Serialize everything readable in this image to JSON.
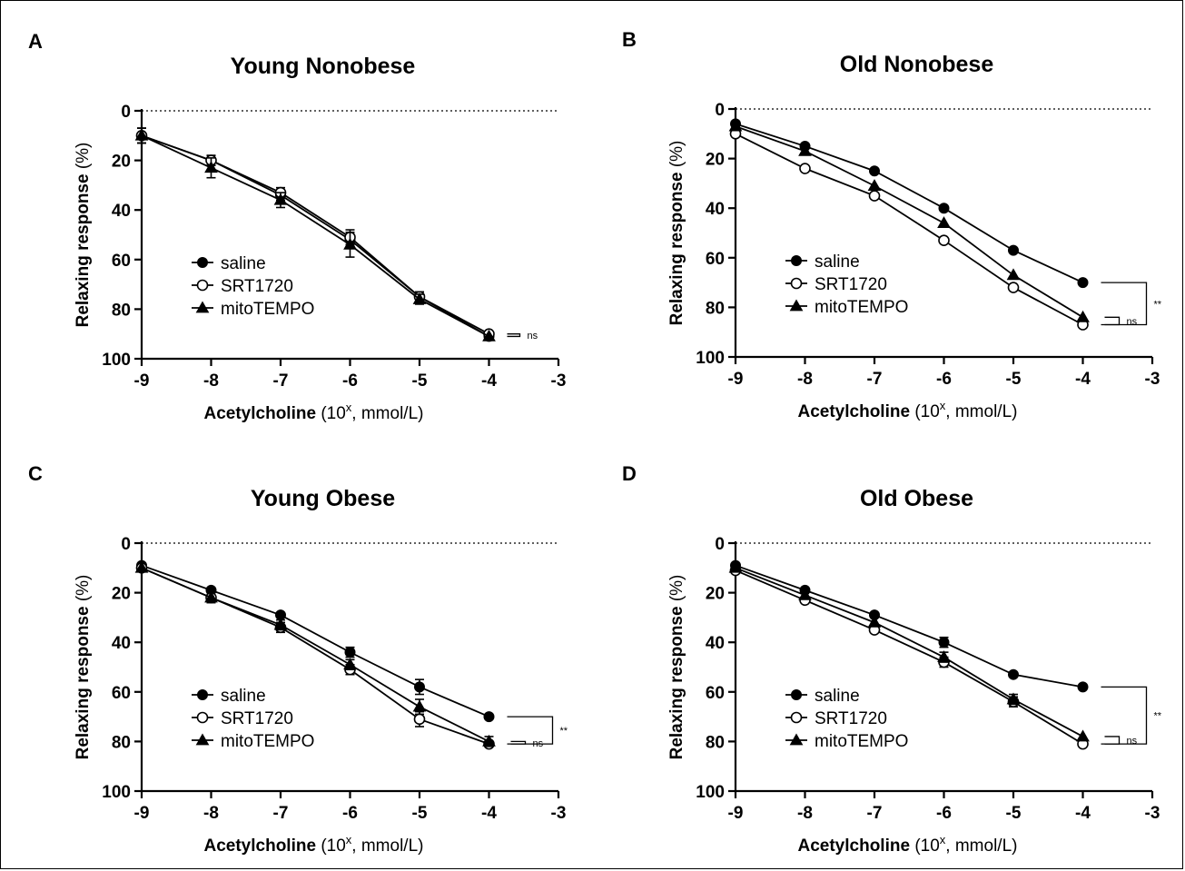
{
  "chart_data": [
    {
      "panel": "A",
      "type": "line",
      "title": "Young Nonobese",
      "xlabel_bold": "Acetylcholine",
      "xlabel_rest": " (10",
      "xlabel_sup": "x",
      "xlabel_end": ", mmol/L)",
      "ylabel_bold": "Relaxing response",
      "ylabel_rest": " (%)",
      "xlim": [
        -9,
        -3
      ],
      "ylim": [
        0,
        100
      ],
      "y_inverted": true,
      "xticks": [
        "-9",
        "-8",
        "-7",
        "-6",
        "-5",
        "-4",
        "-3"
      ],
      "yticks": [
        "0",
        "20",
        "40",
        "60",
        "80",
        "100"
      ],
      "x": [
        -9,
        -8,
        -7,
        -6,
        -5,
        -4
      ],
      "series": [
        {
          "name": "saline",
          "marker": "filled-circle",
          "values": [
            10,
            20,
            34,
            52,
            75,
            91
          ],
          "errors": [
            3,
            2,
            2,
            3,
            2,
            1
          ]
        },
        {
          "name": "SRT1720",
          "marker": "open-circle",
          "values": [
            10,
            20,
            33,
            51,
            75,
            90
          ],
          "errors": [
            3,
            2,
            2,
            3,
            2,
            1
          ]
        },
        {
          "name": "mitoTEMPO",
          "marker": "filled-triangle",
          "values": [
            10,
            23,
            36,
            54,
            76,
            91
          ],
          "errors": [
            3,
            4,
            3,
            5,
            2,
            1
          ]
        }
      ],
      "significance": [
        {
          "label": "ns",
          "between": [
            "saline",
            "SRT1720"
          ]
        }
      ]
    },
    {
      "panel": "B",
      "type": "line",
      "title": "Old Nonobese",
      "xlabel_bold": "Acetylcholine",
      "xlabel_rest": " (10",
      "xlabel_sup": "x",
      "xlabel_end": ", mmol/L)",
      "ylabel_bold": "Relaxing response",
      "ylabel_rest": " (%)",
      "xlim": [
        -9,
        -3
      ],
      "ylim": [
        0,
        100
      ],
      "y_inverted": true,
      "xticks": [
        "-9",
        "-8",
        "-7",
        "-6",
        "-5",
        "-4",
        "-3"
      ],
      "yticks": [
        "0",
        "20",
        "40",
        "60",
        "80",
        "100"
      ],
      "x": [
        -9,
        -8,
        -7,
        -6,
        -5,
        -4
      ],
      "series": [
        {
          "name": "saline",
          "marker": "filled-circle",
          "values": [
            6,
            15,
            25,
            40,
            57,
            70
          ],
          "errors": [
            1,
            1,
            1,
            1,
            1,
            1
          ]
        },
        {
          "name": "SRT1720",
          "marker": "open-circle",
          "values": [
            10,
            24,
            35,
            53,
            72,
            87
          ],
          "errors": [
            1,
            1,
            1,
            1,
            1,
            1
          ]
        },
        {
          "name": "mitoTEMPO",
          "marker": "filled-triangle",
          "values": [
            7,
            17,
            31,
            46,
            67,
            84
          ],
          "errors": [
            1,
            1,
            1,
            1,
            1,
            1
          ]
        }
      ],
      "significance": [
        {
          "label": "ns",
          "between": [
            "mitoTEMPO",
            "SRT1720"
          ]
        },
        {
          "label": "**",
          "between": [
            "saline",
            "SRT1720"
          ]
        }
      ]
    },
    {
      "panel": "C",
      "type": "line",
      "title": "Young Obese",
      "xlabel_bold": "Acetylcholine",
      "xlabel_rest": " (10",
      "xlabel_sup": "x",
      "xlabel_end": ", mmol/L)",
      "ylabel_bold": "Relaxing response",
      "ylabel_rest": " (%)",
      "xlim": [
        -9,
        -3
      ],
      "ylim": [
        0,
        100
      ],
      "y_inverted": true,
      "xticks": [
        "-9",
        "-8",
        "-7",
        "-6",
        "-5",
        "-4",
        "-3"
      ],
      "yticks": [
        "0",
        "20",
        "40",
        "60",
        "80",
        "100"
      ],
      "x": [
        -9,
        -8,
        -7,
        -6,
        -5,
        -4
      ],
      "series": [
        {
          "name": "saline",
          "marker": "filled-circle",
          "values": [
            9,
            19,
            29,
            44,
            58,
            70
          ],
          "errors": [
            1,
            1,
            1,
            2,
            3,
            1
          ]
        },
        {
          "name": "SRT1720",
          "marker": "open-circle",
          "values": [
            10,
            22,
            34,
            51,
            71,
            81
          ],
          "errors": [
            1,
            2,
            2,
            2,
            3,
            1
          ]
        },
        {
          "name": "mitoTEMPO",
          "marker": "filled-triangle",
          "values": [
            10,
            22,
            33,
            49,
            66,
            80
          ],
          "errors": [
            1,
            2,
            2,
            2,
            3,
            2
          ]
        }
      ],
      "significance": [
        {
          "label": "ns",
          "between": [
            "mitoTEMPO",
            "SRT1720"
          ]
        },
        {
          "label": "**",
          "between": [
            "saline",
            "SRT1720"
          ]
        }
      ]
    },
    {
      "panel": "D",
      "type": "line",
      "title": "Old Obese",
      "xlabel_bold": "Acetylcholine",
      "xlabel_rest": " (10",
      "xlabel_sup": "x",
      "xlabel_end": ", mmol/L)",
      "ylabel_bold": "Relaxing response",
      "ylabel_rest": " (%)",
      "xlim": [
        -9,
        -3
      ],
      "ylim": [
        0,
        100
      ],
      "y_inverted": true,
      "xticks": [
        "-9",
        "-8",
        "-7",
        "-6",
        "-5",
        "-4",
        "-3"
      ],
      "yticks": [
        "0",
        "20",
        "40",
        "60",
        "80",
        "100"
      ],
      "x": [
        -9,
        -8,
        -7,
        -6,
        -5,
        -4
      ],
      "series": [
        {
          "name": "saline",
          "marker": "filled-circle",
          "values": [
            9,
            19,
            29,
            40,
            53,
            58
          ],
          "errors": [
            1,
            1,
            1,
            2,
            1,
            1
          ]
        },
        {
          "name": "SRT1720",
          "marker": "open-circle",
          "values": [
            11,
            23,
            35,
            48,
            64,
            81
          ],
          "errors": [
            1,
            1,
            1,
            2,
            2,
            1
          ]
        },
        {
          "name": "mitoTEMPO",
          "marker": "filled-triangle",
          "values": [
            10,
            21,
            32,
            46,
            63,
            78
          ],
          "errors": [
            1,
            1,
            1,
            2,
            2,
            1
          ]
        }
      ],
      "significance": [
        {
          "label": "ns",
          "between": [
            "mitoTEMPO",
            "SRT1720"
          ]
        },
        {
          "label": "**",
          "between": [
            "saline",
            "SRT1720"
          ]
        }
      ]
    }
  ]
}
